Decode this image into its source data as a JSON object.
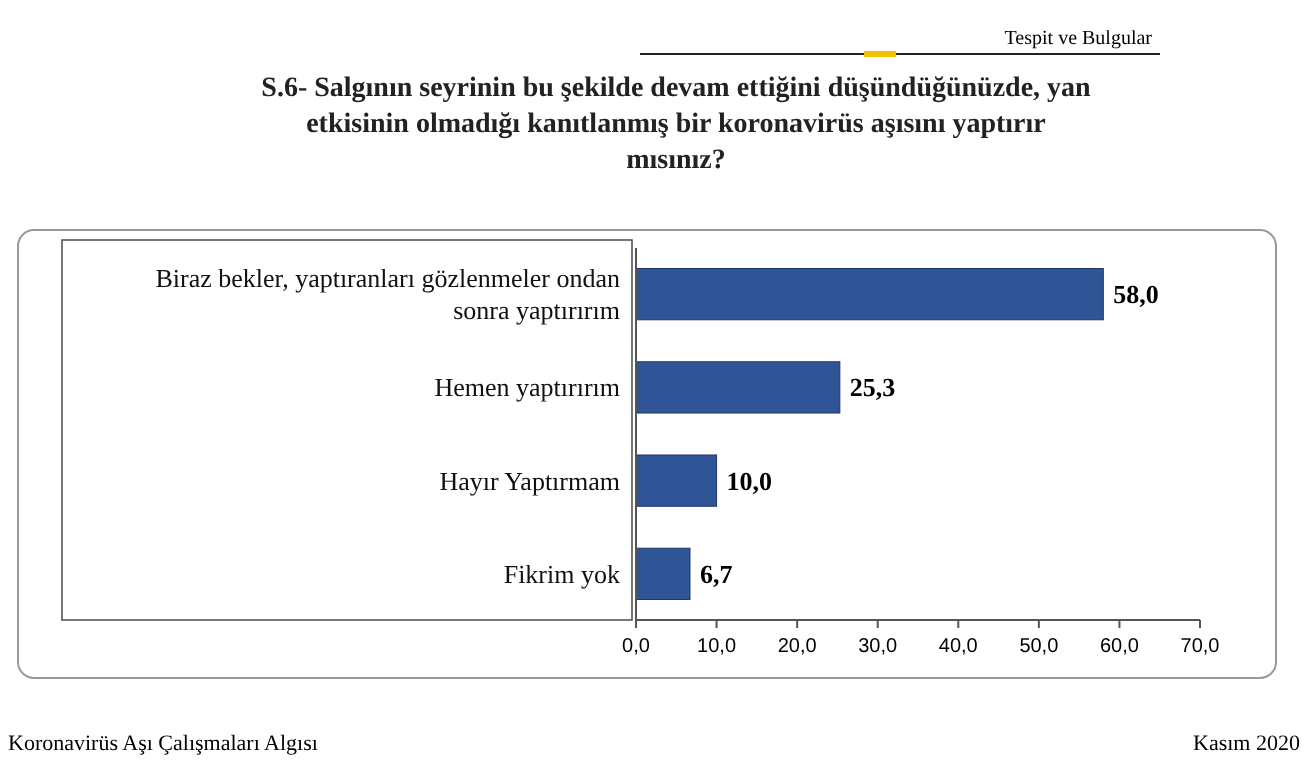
{
  "chart_data": {
    "type": "bar",
    "orientation": "horizontal",
    "title": "S.6-  Salgının seyrinin bu şekilde devam ettiğini düşündüğünüzde, yan etkisinin olmadığı kanıtlanmış bir koronavirüs aşısını  yaptırır mısınız?",
    "categories": [
      "Biraz bekler, yaptıranları gözlenmeler ondan sonra yaptırırım",
      "Hemen yaptırırım",
      "Hayır Yaptırmam",
      "Fikrim yok"
    ],
    "values": [
      58.0,
      25.3,
      10.0,
      6.7
    ],
    "value_labels": [
      "58,0",
      "25,3",
      "10,0",
      "6,7"
    ],
    "color": "#2f5597",
    "xlim": [
      0,
      70
    ],
    "xticks": [
      {
        "value": 0,
        "label": "0,0"
      },
      {
        "value": 10,
        "label": "10,0"
      },
      {
        "value": 20,
        "label": "20,0"
      },
      {
        "value": 30,
        "label": "30,0"
      },
      {
        "value": 40,
        "label": "40,0"
      },
      {
        "value": 50,
        "label": "50,0"
      },
      {
        "value": 60,
        "label": "60,0"
      },
      {
        "value": 70,
        "label": "70,0"
      }
    ],
    "grid": false,
    "annotations": [
      "Tespit ve Bulgular",
      "Koronavirüs Aşı Çalışmaları  Algısı",
      "Kasım 2020"
    ]
  }
}
